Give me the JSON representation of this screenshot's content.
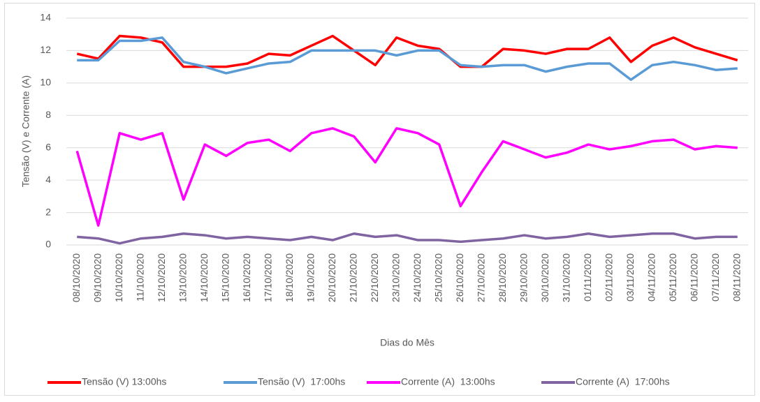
{
  "chart_data": {
    "type": "line",
    "y_label": "Tensão (V) e Corrente (A)",
    "x_label": "Dias do Mês",
    "categories": [
      "08/10/2020",
      "09/10/2020",
      "10/10/2020",
      "11/10/2020",
      "12/10/2020",
      "13/10/2020",
      "14/10/2020",
      "15/10/2020",
      "16/10/2020",
      "17/10/2020",
      "18/10/2020",
      "19/10/2020",
      "20/10/2020",
      "21/10/2020",
      "22/10/2020",
      "23/10/2020",
      "24/10/2020",
      "25/10/2020",
      "26/10/2020",
      "27/10/2020",
      "28/10/2020",
      "29/10/2020",
      "30/10/2020",
      "31/10/2020",
      "01/11/2020",
      "02/11/2020",
      "03/11/2020",
      "04/11/2020",
      "05/11/2020",
      "06/11/2020",
      "07/11/2020",
      "08/11/2020"
    ],
    "series": [
      {
        "name": "Tensão (V) 13:00hs",
        "color": "#ff0000",
        "values": [
          11.8,
          11.5,
          12.9,
          12.8,
          12.5,
          11.0,
          11.0,
          11.0,
          11.2,
          11.8,
          11.7,
          12.3,
          12.9,
          12.0,
          11.1,
          12.8,
          12.3,
          12.1,
          11.0,
          11.0,
          12.1,
          12.0,
          11.8,
          12.1,
          12.1,
          12.8,
          11.3,
          12.3,
          12.8,
          12.2,
          11.8,
          11.4
        ]
      },
      {
        "name": "Tensão (V)  17:00hs",
        "color": "#5b9bd5",
        "values": [
          11.4,
          11.4,
          12.6,
          12.6,
          12.8,
          11.3,
          11.0,
          10.6,
          10.9,
          11.2,
          11.3,
          12.0,
          12.0,
          12.0,
          12.0,
          11.7,
          12.0,
          12.0,
          11.1,
          11.0,
          11.1,
          11.1,
          10.7,
          11.0,
          11.2,
          11.2,
          10.2,
          11.1,
          11.3,
          11.1,
          10.8,
          10.9
        ]
      },
      {
        "name": "Corrente (A)  13:00hs",
        "color": "#ff00ff",
        "values": [
          5.8,
          1.2,
          6.9,
          6.5,
          6.9,
          2.8,
          6.2,
          5.5,
          6.3,
          6.5,
          5.8,
          6.9,
          7.2,
          6.7,
          5.1,
          7.2,
          6.9,
          6.2,
          2.4,
          4.5,
          6.4,
          5.9,
          5.4,
          5.7,
          6.2,
          5.9,
          6.1,
          6.4,
          6.5,
          5.9,
          6.1,
          6.0
        ]
      },
      {
        "name": "Corrente (A)  17:00hs",
        "color": "#8064a2",
        "values": [
          0.5,
          0.4,
          0.1,
          0.4,
          0.5,
          0.7,
          0.6,
          0.4,
          0.5,
          0.4,
          0.3,
          0.5,
          0.3,
          0.7,
          0.5,
          0.6,
          0.3,
          0.3,
          0.2,
          0.3,
          0.4,
          0.6,
          0.4,
          0.5,
          0.7,
          0.5,
          0.6,
          0.7,
          0.7,
          0.4,
          0.5,
          0.5
        ]
      }
    ],
    "ylim": [
      0,
      14
    ],
    "yticks": [
      0,
      2,
      4,
      6,
      8,
      10,
      12,
      14
    ],
    "grid": true,
    "legend": "bottom"
  }
}
